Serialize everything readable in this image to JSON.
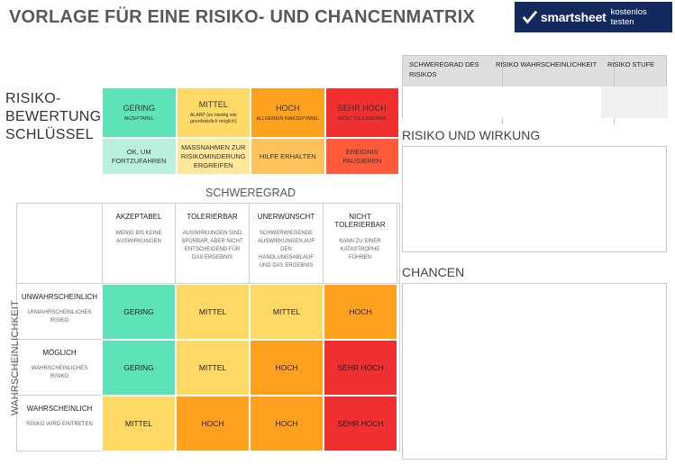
{
  "title": "VORLAGE FÜR EINE RISIKO- UND CHANCENMATRIX",
  "banner": {
    "brand": "smartsheet",
    "cta": "kostenlos testen"
  },
  "key": {
    "label_lines": [
      "RISIKO-",
      "BEWERTUNGS-",
      "SCHLÜSSEL"
    ],
    "levels": [
      {
        "head": "GERING",
        "desc": "AKZEPTABEL",
        "action": "OK, UM FORTZUFAHREN",
        "color": "#5ee3b8",
        "light": "#b9f1dc"
      },
      {
        "head": "MITTEL",
        "desc": "ALARP (so niedrig wie grundsätzlich möglich)",
        "action": "MASSNAHMEN ZUR RISIKOMINDERUNG ERGREIFEN",
        "color": "#ffd966",
        "light": "#ffe89a"
      },
      {
        "head": "HOCH",
        "desc": "ALLGEMEIN INAKZEPTABEL",
        "action": "HILFE ERHALTEN",
        "color": "#ffa11f",
        "light": "#ffc35e"
      },
      {
        "head": "SEHR HOCH",
        "desc": "NICHT TOLERIERBAR",
        "action": "EREIGNIS PAUSIEREN",
        "color": "#f03030",
        "light": "#ff5b3b"
      }
    ]
  },
  "matrix": {
    "severity_title": "SCHWEREGRAD",
    "likelihood_title": "WAHRSCHEINLICHKEIT",
    "severity": [
      {
        "head": "AKZEPTABEL",
        "desc": "WENIG BIS KEINE AUSWIRKUNGEN"
      },
      {
        "head": "TOLERIERBAR",
        "desc": "AUSWIRKUNGEN SIND SPÜRBAR, ABER NICHT ENTSCHEIDEND FÜR DAS ERGEBNIS"
      },
      {
        "head": "UNERWÜNSCHT",
        "desc": "SCHWERWIEGENDE AUSWIRKUNGEN AUF DEN HANDLUNGSABLAUF UND DAS ERGEBNIS"
      },
      {
        "head": "NICHT TOLERIERBAR",
        "desc": "KANN ZU EINER KATASTROPHE FÜHREN"
      }
    ],
    "rows": [
      {
        "head": "UNWAHRSCHEINLICH",
        "desc": "UNWAHRSCHEINLICHES RISIKO",
        "cells": [
          {
            "t": "GERING",
            "c": "#5ee3b8"
          },
          {
            "t": "MITTEL",
            "c": "#ffd966"
          },
          {
            "t": "MITTEL",
            "c": "#ffd966"
          },
          {
            "t": "HOCH",
            "c": "#ffa11f"
          }
        ]
      },
      {
        "head": "MÖGLICH",
        "desc": "WAHRSCHEINLICHES RISIKO",
        "cells": [
          {
            "t": "GERING",
            "c": "#5ee3b8"
          },
          {
            "t": "MITTEL",
            "c": "#ffd966"
          },
          {
            "t": "HOCH",
            "c": "#ffa11f"
          },
          {
            "t": "SEHR HOCH",
            "c": "#f03030"
          }
        ]
      },
      {
        "head": "WAHRSCHEINLICH",
        "desc": "RISIKO WIRD EINTRETEN",
        "cells": [
          {
            "t": "MITTEL",
            "c": "#ffd966"
          },
          {
            "t": "HOCH",
            "c": "#ffa11f"
          },
          {
            "t": "HOCH",
            "c": "#ffa11f"
          },
          {
            "t": "SEHR HOCH",
            "c": "#f03030"
          }
        ]
      }
    ]
  },
  "panel": {
    "headers": [
      "SCHWEREGRAD DES RISIKOS",
      "RISIKO WAHRSCHEINLICHKEIT",
      "RISIKO STUFE"
    ],
    "risk_title": "RISIKO UND WIRKUNG",
    "chances_title": "CHANCEN"
  }
}
